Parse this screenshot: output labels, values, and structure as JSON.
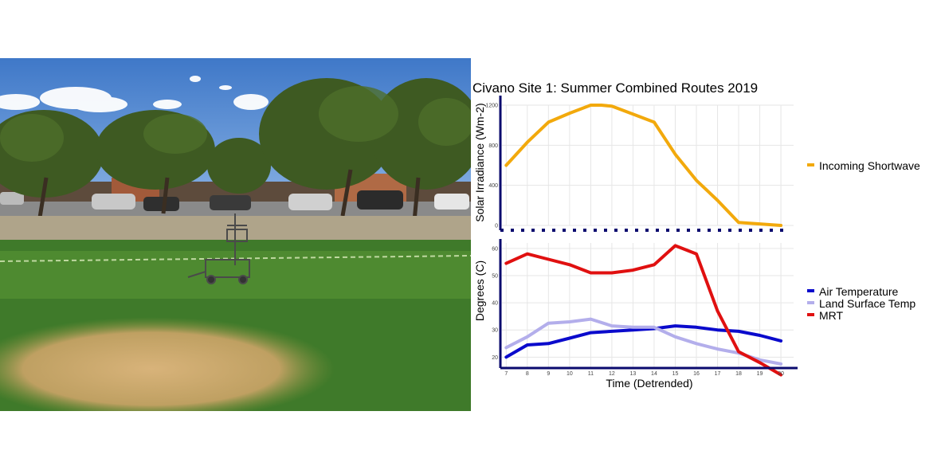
{
  "photo": {
    "description_icon": "field-instrument-cart-photo"
  },
  "chart_data": {
    "title": "Civano Site 1: Summer Combined Routes 2019",
    "xlabel": "Time (Detrended)",
    "x": [
      7,
      8,
      9,
      10,
      11,
      12,
      13,
      14,
      15,
      16,
      17,
      18,
      19,
      20
    ],
    "xlim": [
      6.8,
      20.6
    ],
    "panels": [
      {
        "type": "line",
        "ylabel": "Solar Irradiance (Wm-2)",
        "ylim": [
          0,
          1200
        ],
        "yticks": [
          0,
          400,
          800,
          1200
        ],
        "ytick_labels": [
          "0",
          "400",
          "800",
          "1200"
        ],
        "series": [
          {
            "name": "Incoming Shortwave",
            "color": "#F2A90C",
            "x": [
              7,
              8,
              9,
              10,
              11,
              11.5,
              12,
              13,
              14,
              15,
              16,
              17,
              18,
              19,
              20
            ],
            "values": [
              600,
              830,
              1030,
              1120,
              1200,
              1200,
              1190,
              1110,
              1030,
              710,
              450,
              250,
              30,
              15,
              0
            ]
          }
        ]
      },
      {
        "type": "line",
        "ylabel": "Degrees (C)",
        "ylim": [
          16,
          62
        ],
        "yticks": [
          20,
          30,
          40,
          50,
          60
        ],
        "ytick_labels": [
          "20",
          "30",
          "40",
          "50",
          "60"
        ],
        "series": [
          {
            "name": "Air Temperature",
            "color": "#0A0ACC",
            "x": [
              7,
              8,
              9,
              10,
              11,
              12,
              13,
              14,
              15,
              16,
              17,
              18,
              19,
              20
            ],
            "values": [
              20,
              24.5,
              25,
              27,
              29,
              29.5,
              30,
              30.5,
              31.5,
              31,
              30,
              29.5,
              28,
              26
            ]
          },
          {
            "name": "Land Surface Temp",
            "color": "#B3AEEB",
            "x": [
              7,
              8,
              9,
              10,
              11,
              12,
              13,
              14,
              15,
              16,
              17,
              18,
              19,
              20
            ],
            "values": [
              23.5,
              27.5,
              32.5,
              33,
              34,
              31.5,
              31,
              31,
              27.5,
              25,
              23,
              21.5,
              19,
              17.5
            ]
          },
          {
            "name": "MRT",
            "color": "#E01010",
            "x": [
              7,
              8,
              9,
              10,
              11,
              12,
              13,
              14,
              15,
              16,
              17,
              18,
              19,
              20
            ],
            "values": [
              54.5,
              58,
              56,
              54,
              51,
              51,
              52,
              54,
              61,
              58,
              37,
              22,
              18,
              13.5
            ]
          }
        ]
      }
    ]
  }
}
